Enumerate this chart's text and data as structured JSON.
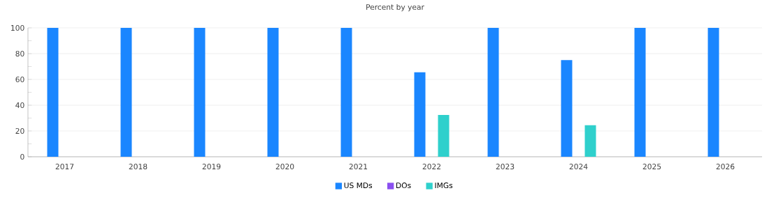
{
  "chart_data": {
    "type": "bar",
    "title": "Percent by year",
    "categories": [
      "2017",
      "2018",
      "2019",
      "2020",
      "2021",
      "2022",
      "2023",
      "2024",
      "2025",
      "2026"
    ],
    "series": [
      {
        "name": "US MDs",
        "color": "#1a86ff",
        "values": [
          100,
          100,
          100,
          100,
          100,
          65.5,
          100,
          75,
          100,
          100
        ]
      },
      {
        "name": "DOs",
        "color": "#8a4ff0",
        "values": [
          0,
          0,
          0,
          0,
          0,
          0,
          0,
          0,
          0,
          0
        ]
      },
      {
        "name": "IMGs",
        "color": "#2fd0cc",
        "values": [
          0,
          0,
          0,
          0,
          0,
          32.5,
          0,
          24.5,
          0,
          0
        ]
      }
    ],
    "ylim": [
      0,
      100
    ],
    "yticks": [
      0,
      {
        "value": 10,
        "label": null
      },
      20,
      {
        "value": 30,
        "label": null
      },
      40,
      {
        "value": 50,
        "label": null
      },
      60,
      {
        "value": 70,
        "label": null
      },
      80,
      {
        "value": 90,
        "label": null
      },
      100
    ],
    "grid": "y",
    "legend": "bottom"
  }
}
